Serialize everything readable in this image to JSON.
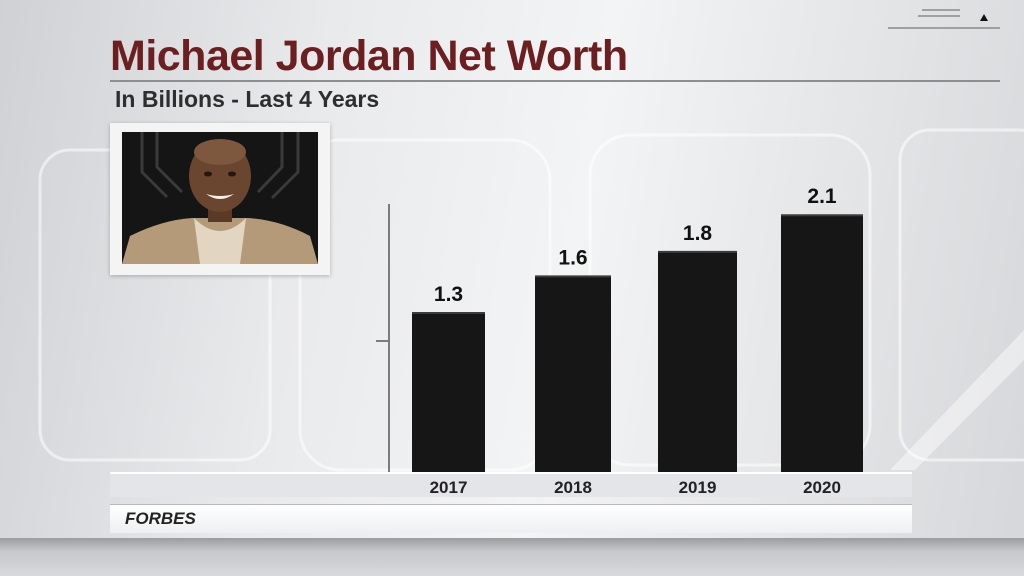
{
  "broadcast": {
    "title": "Michael Jordan Net Worth",
    "subtitle": "In Billions - Last 4 Years",
    "source": "FORBES",
    "accent_color": "#6b1f20",
    "bar_color": "#161616",
    "corner_icon": "menu-arrow-icon",
    "photo": "portrait-photo"
  },
  "chart_data": {
    "type": "bar",
    "categories": [
      "2017",
      "2018",
      "2019",
      "2020"
    ],
    "values": [
      1.3,
      1.6,
      1.8,
      2.1
    ],
    "data_labels": [
      "1.3",
      "1.6",
      "1.8",
      "2.1"
    ],
    "title": "Michael Jordan Net Worth",
    "subtitle": "In Billions - Last 4 Years",
    "ylim": [
      0,
      2.2
    ],
    "grid": false,
    "legend": "none"
  }
}
